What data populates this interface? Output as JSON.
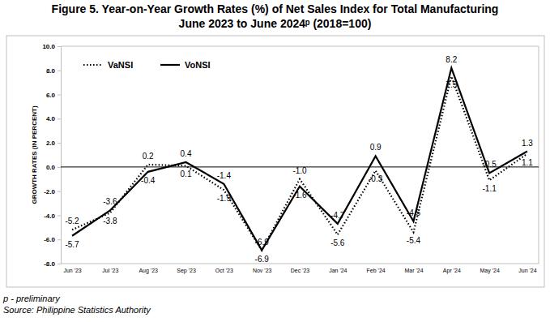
{
  "chart_data": {
    "type": "line",
    "title": "Figure 5. Year-on-Year Growth Rates (%) of Net Sales Index for Total Manufacturing",
    "subtitle": "June 2023 to June 2024ᵖ (2018=100)",
    "ylabel": "GROWTH RATES (IN PERCENT)",
    "annotations": [
      "p - preliminary",
      "Source: Philippine Statistics Authority"
    ],
    "categories": [
      "Jun '23",
      "Jul '23",
      "Aug '23",
      "Sep '23",
      "Oct '23",
      "Nov '23",
      "Dec '23",
      "Jan '24",
      "Feb '24",
      "Mar '24",
      "Apr '24",
      "May '24",
      "Jun '24"
    ],
    "series": [
      {
        "name": "VaNSI",
        "color": "#000000",
        "line_style": "dotted",
        "values": [
          -5.2,
          -3.8,
          0.2,
          0.1,
          -1.9,
          -6.9,
          -1.0,
          -5.6,
          -0.3,
          -5.4,
          7.5,
          -1.1,
          1.1
        ],
        "value_labels": [
          "-5.2",
          "-3.8",
          "0.2",
          "0.1",
          "-1.9",
          "-6.9",
          "-1.0",
          "-5.6",
          "-0.3",
          "-5.4",
          "7.5",
          "-1.1",
          "1.1"
        ]
      },
      {
        "name": "VoNSI",
        "color": "#000000",
        "line_style": "solid",
        "values": [
          -5.7,
          -3.6,
          -0.4,
          0.4,
          -1.4,
          -6.9,
          -1.6,
          -4.7,
          0.9,
          -4.5,
          8.2,
          -0.5,
          1.3
        ],
        "value_labels": [
          "-5.7",
          "-3.6",
          "-0.4",
          "0.4",
          "-1.4",
          "-6.9",
          "-1.6",
          "-4.7",
          "0.9",
          "-4.5",
          "8.2",
          "-0.5",
          "1.3"
        ]
      }
    ],
    "ylim": [
      -8,
      10
    ],
    "yticks": [
      {
        "value": -8,
        "label": "-8.0"
      },
      {
        "value": -6,
        "label": "-6.0"
      },
      {
        "value": -4,
        "label": "-4.0"
      },
      {
        "value": -2,
        "label": "-2.0"
      },
      {
        "value": 0,
        "label": "0.0"
      },
      {
        "value": 2,
        "label": "2.0"
      },
      {
        "value": 4,
        "label": "4.0"
      },
      {
        "value": 6,
        "label": "6.0"
      },
      {
        "value": 8,
        "label": "8.0"
      },
      {
        "value": 10,
        "label": "10.0"
      }
    ],
    "grid": false,
    "legend": "upper left",
    "data_labels": true
  }
}
